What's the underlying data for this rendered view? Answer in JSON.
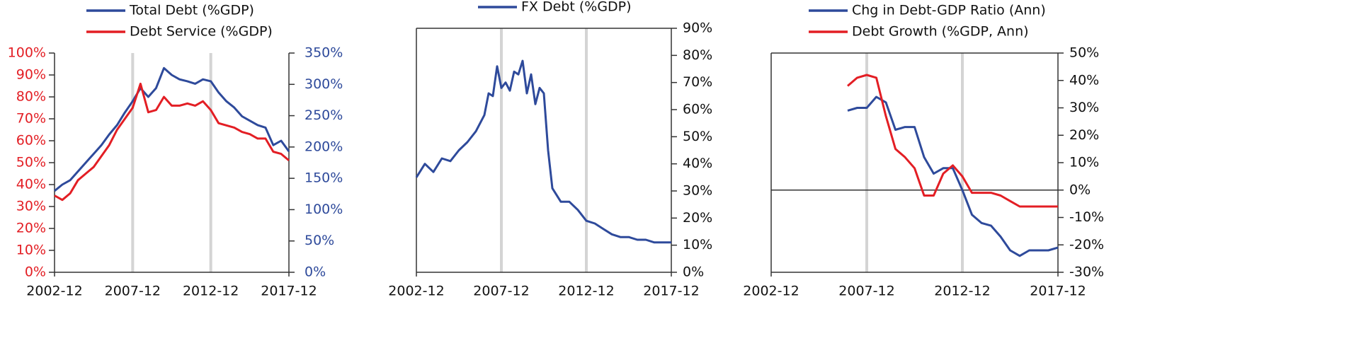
{
  "chart_data": [
    {
      "type": "line",
      "legend": "top",
      "x": [
        "2002-12",
        "2003-06",
        "2003-12",
        "2004-06",
        "2004-12",
        "2005-06",
        "2005-12",
        "2006-06",
        "2006-12",
        "2007-06",
        "2007-12",
        "2008-06",
        "2008-12",
        "2009-06",
        "2009-12",
        "2010-06",
        "2010-12",
        "2011-06",
        "2011-12",
        "2012-06",
        "2012-12",
        "2013-06",
        "2013-12",
        "2014-06",
        "2014-12",
        "2015-06",
        "2015-12",
        "2016-06",
        "2016-12",
        "2017-06",
        "2017-12"
      ],
      "series": [
        {
          "name": "Total Debt (%GDP)",
          "color": "#2e4a9b",
          "axis": "y2",
          "values": [
            130,
            140,
            147,
            161,
            175,
            189,
            203,
            220,
            235,
            255,
            273,
            294,
            280,
            294,
            326,
            315,
            308,
            305,
            301,
            308,
            305,
            287,
            273,
            263,
            249,
            242,
            235,
            231,
            203,
            210,
            193
          ]
        },
        {
          "name": "Debt Service (%GDP)",
          "color": "#e31e24",
          "values": [
            35,
            33,
            36,
            42,
            45,
            48,
            53,
            58,
            65,
            70,
            75,
            86,
            73,
            74,
            80,
            76,
            76,
            77,
            76,
            78,
            74,
            68,
            67,
            66,
            64,
            63,
            61,
            61,
            55,
            54,
            51
          ]
        }
      ],
      "xlim": [
        "2002-12",
        "2017-12"
      ],
      "xticks": [
        "2002-12",
        "2007-12",
        "2012-12",
        "2017-12"
      ],
      "xgrid": true,
      "ylim": [
        0,
        100
      ],
      "y_axis_color": "#e31e24",
      "yticks": [
        {
          "value": 0,
          "label": "0%"
        },
        {
          "value": 10,
          "label": "10%"
        },
        {
          "value": 20,
          "label": "20%"
        },
        {
          "value": 30,
          "label": "30%"
        },
        {
          "value": 40,
          "label": "40%"
        },
        {
          "value": 50,
          "label": "50%"
        },
        {
          "value": 60,
          "label": "60%"
        },
        {
          "value": 70,
          "label": "70%"
        },
        {
          "value": 80,
          "label": "80%"
        },
        {
          "value": 90,
          "label": "90%"
        },
        {
          "value": 100,
          "label": "100%"
        }
      ],
      "y2lim": [
        0,
        350
      ],
      "y2_axis_color": "#2e4a9b",
      "y2ticks": [
        {
          "value": 0,
          "label": "0%"
        },
        {
          "value": 50,
          "label": "50%"
        },
        {
          "value": 100,
          "label": "100%"
        },
        {
          "value": 150,
          "label": "150%"
        },
        {
          "value": 200,
          "label": "200%"
        },
        {
          "value": 250,
          "label": "250%"
        },
        {
          "value": 300,
          "label": "300%"
        },
        {
          "value": 350,
          "label": "350%"
        }
      ]
    },
    {
      "type": "line",
      "legend": "top",
      "y_axis_side": "right",
      "frame": true,
      "x": [
        "2002-12",
        "2003-06",
        "2003-12",
        "2004-06",
        "2004-12",
        "2005-06",
        "2005-12",
        "2006-06",
        "2006-12",
        "2007-03",
        "2007-06",
        "2007-09",
        "2007-12",
        "2008-03",
        "2008-06",
        "2008-09",
        "2008-12",
        "2009-03",
        "2009-06",
        "2009-09",
        "2009-12",
        "2010-03",
        "2010-06",
        "2010-09",
        "2010-12",
        "2011-06",
        "2011-12",
        "2012-06",
        "2012-12",
        "2013-06",
        "2013-12",
        "2014-06",
        "2014-12",
        "2015-06",
        "2015-12",
        "2016-06",
        "2016-12",
        "2017-06",
        "2017-12"
      ],
      "series": [
        {
          "name": "FX Debt (%GDP)",
          "color": "#2e4a9b",
          "values": [
            35,
            40,
            37,
            42,
            41,
            45,
            48,
            52,
            58,
            66,
            65,
            76,
            68,
            70,
            67,
            74,
            73,
            78,
            66,
            73,
            62,
            68,
            66,
            45,
            31,
            26,
            26,
            23,
            19,
            18,
            16,
            14,
            13,
            13,
            12,
            12,
            11,
            11,
            11
          ]
        }
      ],
      "xlim": [
        "2002-12",
        "2017-12"
      ],
      "xticks": [
        "2002-12",
        "2007-12",
        "2012-12",
        "2017-12"
      ],
      "xgrid": true,
      "ylim": [
        0,
        90
      ],
      "yticks": [
        {
          "value": 0,
          "label": "0%"
        },
        {
          "value": 10,
          "label": "10%"
        },
        {
          "value": 20,
          "label": "20%"
        },
        {
          "value": 30,
          "label": "30%"
        },
        {
          "value": 40,
          "label": "40%"
        },
        {
          "value": 50,
          "label": "50%"
        },
        {
          "value": 60,
          "label": "60%"
        },
        {
          "value": 70,
          "label": "70%"
        },
        {
          "value": 80,
          "label": "80%"
        },
        {
          "value": 90,
          "label": "90%"
        }
      ]
    },
    {
      "type": "line",
      "legend": "top",
      "y_axis_side": "right",
      "frame": true,
      "zero_line": true,
      "x": [
        "2006-12",
        "2007-06",
        "2007-12",
        "2008-06",
        "2008-12",
        "2009-06",
        "2009-12",
        "2010-06",
        "2010-12",
        "2011-06",
        "2011-12",
        "2012-06",
        "2012-12",
        "2013-06",
        "2013-12",
        "2014-06",
        "2014-12",
        "2015-06",
        "2015-12",
        "2016-06",
        "2016-12",
        "2017-06",
        "2017-12"
      ],
      "series": [
        {
          "name": "Chg in Debt-GDP Ratio (Ann)",
          "color": "#2e4a9b",
          "values": [
            29,
            30,
            30,
            34,
            32,
            22,
            23,
            23,
            12,
            6,
            8,
            8,
            0,
            -9,
            -12,
            -13,
            -17,
            -22,
            -24,
            -22,
            -22,
            -22,
            -21
          ]
        },
        {
          "name": "Debt Growth (%GDP, Ann)",
          "color": "#e31e24",
          "values": [
            38,
            41,
            42,
            41,
            27,
            15,
            12,
            8,
            -2,
            -2,
            6,
            9,
            5,
            -1,
            -1,
            -1,
            -2,
            -4,
            -6,
            -6,
            -6,
            -6,
            -6
          ]
        }
      ],
      "xlim": [
        "2002-12",
        "2017-12"
      ],
      "xticks": [
        "2002-12",
        "2007-12",
        "2012-12",
        "2017-12"
      ],
      "xgrid": true,
      "ylim": [
        -30,
        50
      ],
      "yticks": [
        {
          "value": -30,
          "label": "-30%"
        },
        {
          "value": -20,
          "label": "-20%"
        },
        {
          "value": -10,
          "label": "-10%"
        },
        {
          "value": 0,
          "label": "0%"
        },
        {
          "value": 10,
          "label": "10%"
        },
        {
          "value": 20,
          "label": "20%"
        },
        {
          "value": 30,
          "label": "30%"
        },
        {
          "value": 40,
          "label": "40%"
        },
        {
          "value": 50,
          "label": "50%"
        }
      ]
    }
  ]
}
